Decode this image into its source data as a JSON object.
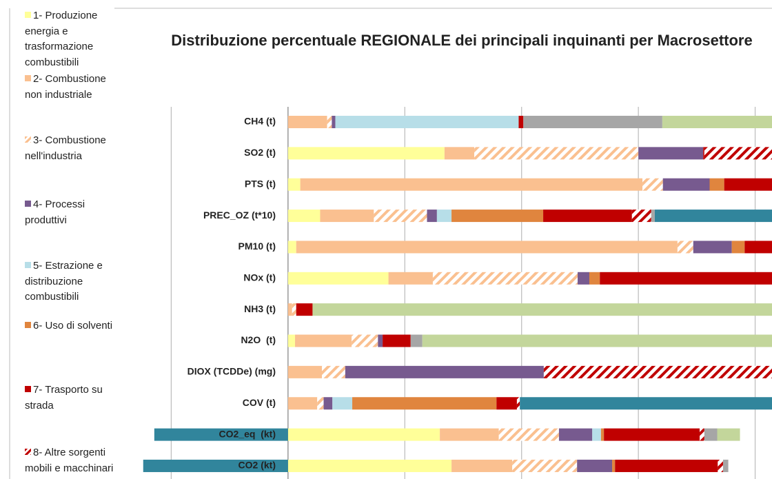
{
  "chart_data": {
    "type": "stacked-barh",
    "title": "Distribuzione percentuale REGIONALE dei principali inquinanti per Macrosettore",
    "categories": [
      "CH4 (t)",
      "SO2 (t)",
      "PTS (t)",
      "PREC_OZ (t*10)",
      "PM10 (t)",
      "NOx (t)",
      "NH3 (t)",
      "N2O  (t)",
      "DIOX (TCDDe) (mg)",
      "COV (t)",
      "CO2_eq  (kt)",
      "CO2 (kt)"
    ],
    "series": [
      {
        "name": "1- Produzione energia e trasformazione combustibili",
        "color": "#ffff99",
        "values": [
          0,
          26.8,
          2.1,
          5.5,
          1.4,
          17.2,
          0,
          1.2,
          0,
          0,
          26.0,
          28.0
        ]
      },
      {
        "name": "2- Combustione non industriale",
        "color": "#fac090",
        "values": [
          6.7,
          5.1,
          58.6,
          9.2,
          65.3,
          7.6,
          0.7,
          9.7,
          5.8,
          5.0,
          10.1,
          10.4
        ]
      },
      {
        "name": "3- Combustione nell'industria",
        "color": "#fac090",
        "hatch": true,
        "values": [
          0.8,
          28.1,
          3.5,
          9.1,
          2.7,
          24.8,
          0.7,
          4.5,
          4.0,
          1.1,
          10.3,
          11.1
        ]
      },
      {
        "name": "4- Processi produttivi",
        "color": "#775a8f",
        "values": [
          0.6,
          11.1,
          8.0,
          1.7,
          6.6,
          2.0,
          0,
          0.8,
          34.0,
          1.5,
          5.7,
          6.0
        ]
      },
      {
        "name": "5- Estrazione e distribuzione combustibili",
        "color": "#b7dee8",
        "values": [
          31.4,
          0,
          0,
          2.5,
          0,
          0,
          0,
          0,
          0,
          3.4,
          1.5,
          0
        ]
      },
      {
        "name": "6- Uso di solventi",
        "color": "#e0853e",
        "values": [
          0,
          0,
          2.5,
          15.7,
          2.2,
          1.8,
          0,
          0,
          0,
          24.7,
          0.5,
          0.5
        ]
      },
      {
        "name": "7- Trasporto su strada",
        "color": "#c00000",
        "values": [
          0.8,
          0.2,
          22.0,
          15.2,
          16.0,
          33.0,
          2.8,
          4.8,
          0,
          3.5,
          16.4,
          17.6
        ]
      },
      {
        "name": "8- Altre sorgenti mobili e macchinari",
        "color": "#c00000",
        "hatch": true,
        "values": [
          0,
          28.7,
          3.3,
          3.3,
          5.8,
          13.6,
          0,
          0,
          56.2,
          0.5,
          0.8,
          0.9
        ]
      },
      {
        "color": "#a6a6a6",
        "values": [
          23.8,
          0,
          0,
          0.6,
          0,
          0,
          0,
          2.0,
          0,
          0,
          2.2,
          0.9
        ]
      },
      {
        "color": "#c3d69b",
        "values": [
          35.9,
          0,
          0,
          0,
          0,
          0,
          95.8,
          77.0,
          0,
          0,
          3.9,
          0
        ]
      },
      {
        "color": "#31859c",
        "values": [
          0,
          0,
          0,
          37.2,
          0,
          0,
          0,
          0,
          0,
          60.3,
          -22.9,
          -24.8
        ]
      }
    ],
    "xlim": [
      -40,
      100
    ],
    "xticks": [
      -20,
      0,
      20,
      40,
      60,
      80,
      100
    ],
    "grid": true
  }
}
